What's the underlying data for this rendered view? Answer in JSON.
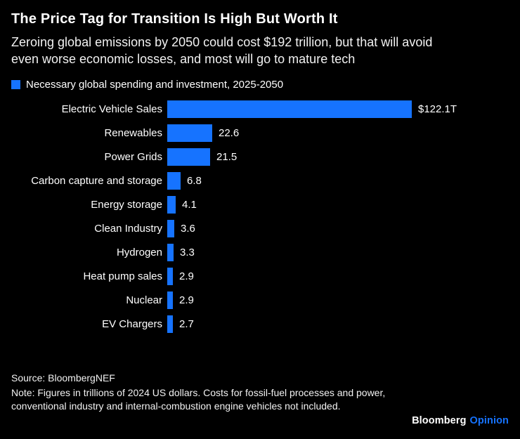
{
  "header": {
    "title": "The Price Tag for Transition Is High But Worth It",
    "subtitle": "Zeroing global emissions by 2050 could cost $192 trillion, but that will avoid even worse economic losses, and most will go to mature tech"
  },
  "legend": {
    "label": "Necessary global spending and investment, 2025-2050"
  },
  "chart_data": {
    "type": "bar",
    "orientation": "horizontal",
    "title": "Necessary global spending and investment, 2025-2050",
    "categories": [
      "Electric Vehicle Sales",
      "Renewables",
      "Power Grids",
      "Carbon capture and storage",
      "Energy storage",
      "Clean Industry",
      "Hydrogen",
      "Heat pump sales",
      "Nuclear",
      "EV Chargers"
    ],
    "values": [
      122.1,
      22.6,
      21.5,
      6.8,
      4.1,
      3.6,
      3.3,
      2.9,
      2.9,
      2.7
    ],
    "value_labels": [
      "$122.1T",
      "22.6",
      "21.5",
      "6.8",
      "4.1",
      "3.6",
      "3.3",
      "2.9",
      "2.9",
      "2.7"
    ],
    "bar_color": "#1673ff",
    "xlim": [
      0,
      122.1
    ],
    "grid": false,
    "legend_position": "top-left"
  },
  "footer": {
    "source": "Source: BloombergNEF",
    "note": "Note: Figures in trillions of 2024 US dollars. Costs for fossil-fuel processes and power, conventional industry and internal-combustion engine vehicles not included.",
    "brand": "Bloomberg",
    "brand_suffix": "Opinion"
  },
  "colors": {
    "background": "#000000",
    "accent_blue": "#1673ff",
    "text": "#ffffff"
  }
}
